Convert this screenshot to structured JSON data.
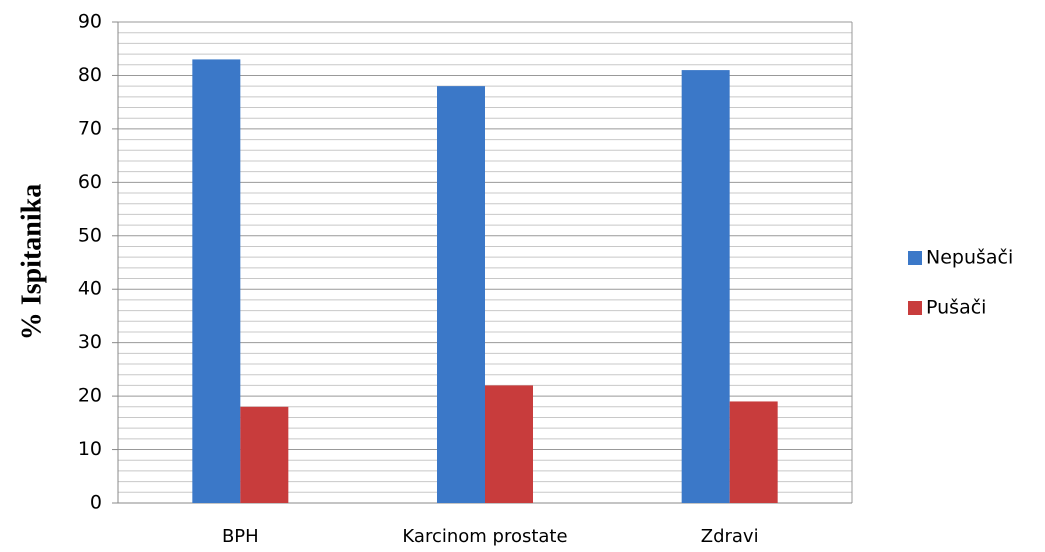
{
  "chart_data": {
    "type": "bar",
    "y_label": "% Ispitanika",
    "categories": [
      "BPH",
      "Karcinom prostate",
      "Zdravi"
    ],
    "series": [
      {
        "name": "Nepušači",
        "color": "#3b78c8",
        "values": [
          83,
          78,
          81
        ]
      },
      {
        "name": "Pušači",
        "color": "#c83c3c",
        "values": [
          18,
          22,
          19
        ]
      }
    ],
    "ylim": [
      0,
      90
    ],
    "yticks": [
      0,
      10,
      20,
      30,
      40,
      50,
      60,
      70,
      80,
      90
    ],
    "minor_yticks": [
      2,
      4,
      6,
      8,
      12,
      14,
      16,
      18,
      22,
      24,
      26,
      28,
      32,
      34,
      36,
      38,
      42,
      44,
      46,
      48,
      52,
      54,
      56,
      58,
      62,
      64,
      66,
      68,
      72,
      74,
      76,
      78,
      82,
      84,
      86,
      88
    ],
    "grid": true,
    "legend": "right"
  }
}
